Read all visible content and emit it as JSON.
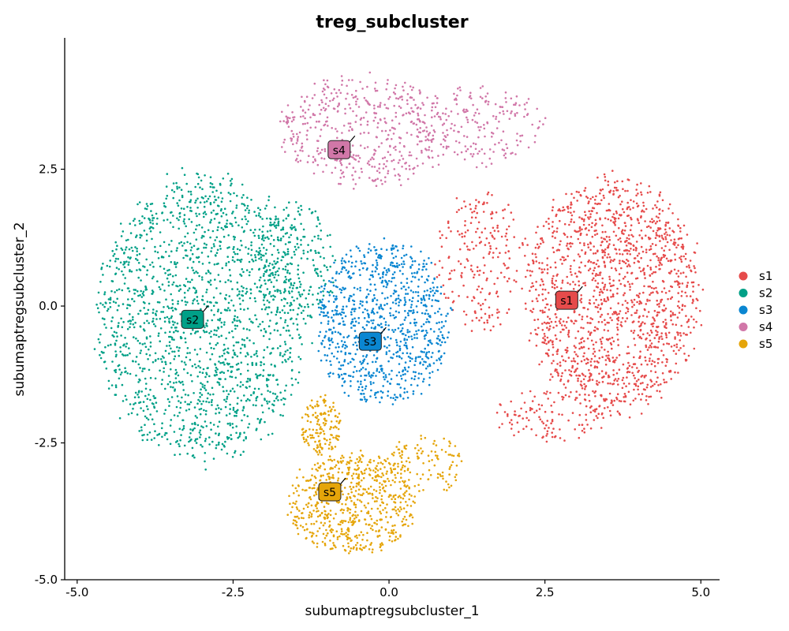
{
  "chart_data": {
    "type": "scatter",
    "title": "treg_subcluster",
    "xlabel": "subumaptregsubcluster_1",
    "ylabel": "subumaptregsubcluster_2",
    "xlim": [
      -5.2,
      5.3
    ],
    "ylim": [
      -5.0,
      4.9
    ],
    "xticks": [
      -5.0,
      -2.5,
      0.0,
      2.5,
      5.0
    ],
    "xtick_labels": [
      "-5.0",
      "-2.5",
      "0.0",
      "2.5",
      "5.0"
    ],
    "yticks": [
      -5.0,
      -2.5,
      0.0,
      2.5
    ],
    "ytick_labels": [
      "-5.0",
      "-2.5",
      "0.0",
      "2.5"
    ],
    "grid": false,
    "legend_position": "right",
    "series": [
      {
        "name": "s1",
        "color": "#E64B4B",
        "label_center": [
          2.85,
          0.1
        ],
        "regions": [
          {
            "cx": 3.6,
            "cy": 0.2,
            "rx": 1.5,
            "ry": 2.3,
            "n": 1500
          },
          {
            "cx": 1.5,
            "cy": 0.8,
            "rx": 0.8,
            "ry": 1.4,
            "n": 220
          },
          {
            "cx": 2.6,
            "cy": -2.0,
            "rx": 1.0,
            "ry": 0.5,
            "n": 120
          }
        ]
      },
      {
        "name": "s2",
        "color": "#00A087",
        "label_center": [
          -3.15,
          -0.25
        ],
        "regions": [
          {
            "cx": -3.0,
            "cy": -0.2,
            "rx": 1.8,
            "ry": 2.8,
            "n": 1700
          },
          {
            "cx": -1.5,
            "cy": 0.8,
            "rx": 0.7,
            "ry": 1.2,
            "n": 220
          }
        ]
      },
      {
        "name": "s3",
        "color": "#0A86D1",
        "label_center": [
          -0.3,
          -0.65
        ],
        "regions": [
          {
            "cx": -0.1,
            "cy": -0.3,
            "rx": 1.15,
            "ry": 1.6,
            "n": 900
          }
        ]
      },
      {
        "name": "s4",
        "color": "#D177A8",
        "label_center": [
          -0.8,
          2.85
        ],
        "regions": [
          {
            "cx": -0.4,
            "cy": 3.2,
            "rx": 1.5,
            "ry": 1.1,
            "n": 480
          },
          {
            "cx": 1.4,
            "cy": 3.3,
            "rx": 1.2,
            "ry": 0.8,
            "n": 200
          }
        ]
      },
      {
        "name": "s5",
        "color": "#E5A50A",
        "label_center": [
          -0.95,
          -3.4
        ],
        "regions": [
          {
            "cx": -0.6,
            "cy": -3.6,
            "rx": 1.1,
            "ry": 1.0,
            "n": 650
          },
          {
            "cx": -1.1,
            "cy": -2.2,
            "rx": 0.35,
            "ry": 0.6,
            "n": 150
          },
          {
            "cx": 0.6,
            "cy": -2.9,
            "rx": 0.7,
            "ry": 0.6,
            "n": 120
          }
        ]
      }
    ]
  }
}
